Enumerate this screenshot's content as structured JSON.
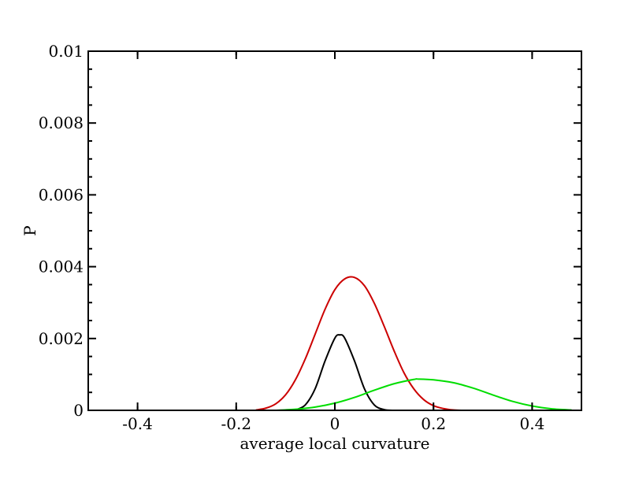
{
  "chart_data": {
    "type": "line",
    "title": "",
    "xlabel": "average local curvature",
    "ylabel": "P",
    "xlim": [
      -0.5,
      0.5
    ],
    "ylim": [
      0,
      0.01
    ],
    "x_ticks": [
      -0.4,
      -0.2,
      0,
      0.2,
      0.4
    ],
    "x_tick_labels": [
      "-0.4",
      "-0.2",
      "0",
      "0.2",
      "0.4"
    ],
    "y_ticks": [
      0,
      0.002,
      0.004,
      0.006,
      0.008,
      0.01
    ],
    "y_tick_labels": [
      "0",
      "0.002",
      "0.004",
      "0.006",
      "0.008",
      "0.01"
    ],
    "grid": false,
    "legend": "none",
    "series": [
      {
        "color": "#000000",
        "x": [
          -0.08,
          -0.06,
          -0.04,
          -0.02,
          0.0,
          0.01,
          0.02,
          0.04,
          0.06,
          0.08,
          0.1,
          0.12
        ],
        "y": [
          1e-05,
          0.00015,
          0.0006,
          0.00137,
          0.00201,
          0.0021,
          0.00201,
          0.00137,
          0.0006,
          0.00015,
          2e-05,
          0.0
        ]
      },
      {
        "color": "#cc0000",
        "x": [
          -0.16,
          -0.14,
          -0.12,
          -0.1,
          -0.08,
          -0.06,
          -0.04,
          -0.02,
          0.0,
          0.02,
          0.04,
          0.06,
          0.08,
          0.1,
          0.12,
          0.14,
          0.16,
          0.18,
          0.2,
          0.22,
          0.24,
          0.26
        ],
        "y": [
          1e-05,
          6e-05,
          0.00018,
          0.00043,
          0.00085,
          0.00143,
          0.00212,
          0.00281,
          0.00336,
          0.00366,
          0.0037,
          0.00347,
          0.00298,
          0.00234,
          0.00166,
          0.00105,
          0.0006,
          0.0003,
          0.00013,
          5e-05,
          1e-05,
          0.0
        ]
      },
      {
        "color": "#00dd00",
        "x": [
          -0.12,
          -0.08,
          -0.04,
          0.0,
          0.04,
          0.08,
          0.12,
          0.16,
          0.17,
          0.2,
          0.24,
          0.28,
          0.32,
          0.36,
          0.4,
          0.44,
          0.48
        ],
        "y": [
          0.0,
          3e-05,
          9e-05,
          0.0002,
          0.00036,
          0.00056,
          0.00074,
          0.00086,
          0.00087,
          0.00085,
          0.00077,
          0.00062,
          0.00043,
          0.00025,
          0.00012,
          4e-05,
          1e-05
        ]
      }
    ]
  }
}
